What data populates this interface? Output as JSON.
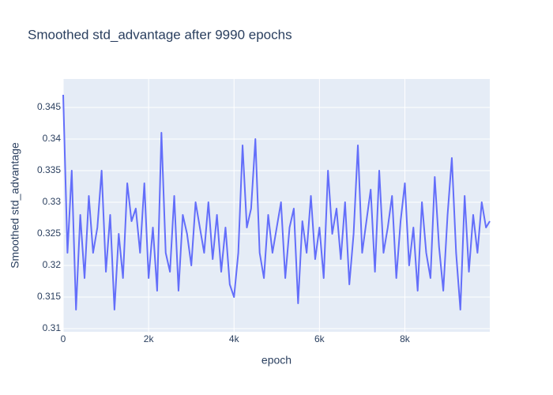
{
  "chart_data": {
    "type": "line",
    "title": "Smoothed std_advantage after 9990 epochs",
    "x_label": "epoch",
    "y_label": "Smoothed std_advantage",
    "grid": true,
    "xlim": [
      0,
      9989
    ],
    "ylim": [
      0.3095,
      0.3495
    ],
    "xticks": [
      0,
      {
        "value": 2000,
        "label": "2k"
      },
      {
        "value": 4000,
        "label": "4k"
      },
      {
        "value": 6000,
        "label": "6k"
      },
      {
        "value": 8000,
        "label": "8k"
      }
    ],
    "yticks": [
      0.31,
      0.315,
      0.32,
      0.325,
      0.33,
      0.335,
      0.34,
      0.345
    ],
    "x": [
      0,
      100,
      200,
      300,
      400,
      500,
      600,
      700,
      800,
      900,
      1000,
      1100,
      1200,
      1300,
      1400,
      1500,
      1600,
      1700,
      1800,
      1900,
      2000,
      2100,
      2200,
      2300,
      2400,
      2500,
      2600,
      2700,
      2800,
      2900,
      3000,
      3100,
      3200,
      3300,
      3400,
      3500,
      3600,
      3700,
      3800,
      3900,
      4000,
      4100,
      4200,
      4300,
      4400,
      4500,
      4600,
      4700,
      4800,
      4900,
      5000,
      5100,
      5200,
      5300,
      5400,
      5500,
      5600,
      5700,
      5800,
      5900,
      6000,
      6100,
      6200,
      6300,
      6400,
      6500,
      6600,
      6700,
      6800,
      6900,
      7000,
      7100,
      7200,
      7300,
      7400,
      7500,
      7600,
      7700,
      7800,
      7900,
      8000,
      8100,
      8200,
      8300,
      8400,
      8500,
      8600,
      8700,
      8800,
      8900,
      9000,
      9100,
      9200,
      9300,
      9400,
      9500,
      9600,
      9700,
      9800,
      9900,
      9989
    ],
    "series": [
      {
        "color": "#636efa",
        "values": [
          0.347,
          0.322,
          0.335,
          0.313,
          0.328,
          0.318,
          0.331,
          0.322,
          0.326,
          0.335,
          0.319,
          0.328,
          0.313,
          0.325,
          0.318,
          0.333,
          0.327,
          0.329,
          0.322,
          0.333,
          0.318,
          0.326,
          0.316,
          0.341,
          0.322,
          0.319,
          0.331,
          0.316,
          0.328,
          0.325,
          0.32,
          0.33,
          0.326,
          0.322,
          0.33,
          0.321,
          0.328,
          0.319,
          0.326,
          0.317,
          0.315,
          0.322,
          0.339,
          0.326,
          0.329,
          0.34,
          0.322,
          0.318,
          0.328,
          0.322,
          0.326,
          0.33,
          0.318,
          0.326,
          0.329,
          0.314,
          0.327,
          0.322,
          0.331,
          0.321,
          0.326,
          0.318,
          0.335,
          0.325,
          0.329,
          0.321,
          0.33,
          0.317,
          0.325,
          0.339,
          0.322,
          0.327,
          0.332,
          0.319,
          0.335,
          0.322,
          0.326,
          0.331,
          0.318,
          0.327,
          0.333,
          0.32,
          0.326,
          0.316,
          0.33,
          0.322,
          0.318,
          0.334,
          0.323,
          0.316,
          0.328,
          0.337,
          0.322,
          0.313,
          0.331,
          0.319,
          0.328,
          0.322,
          0.33,
          0.326,
          0.327
        ]
      }
    ]
  }
}
